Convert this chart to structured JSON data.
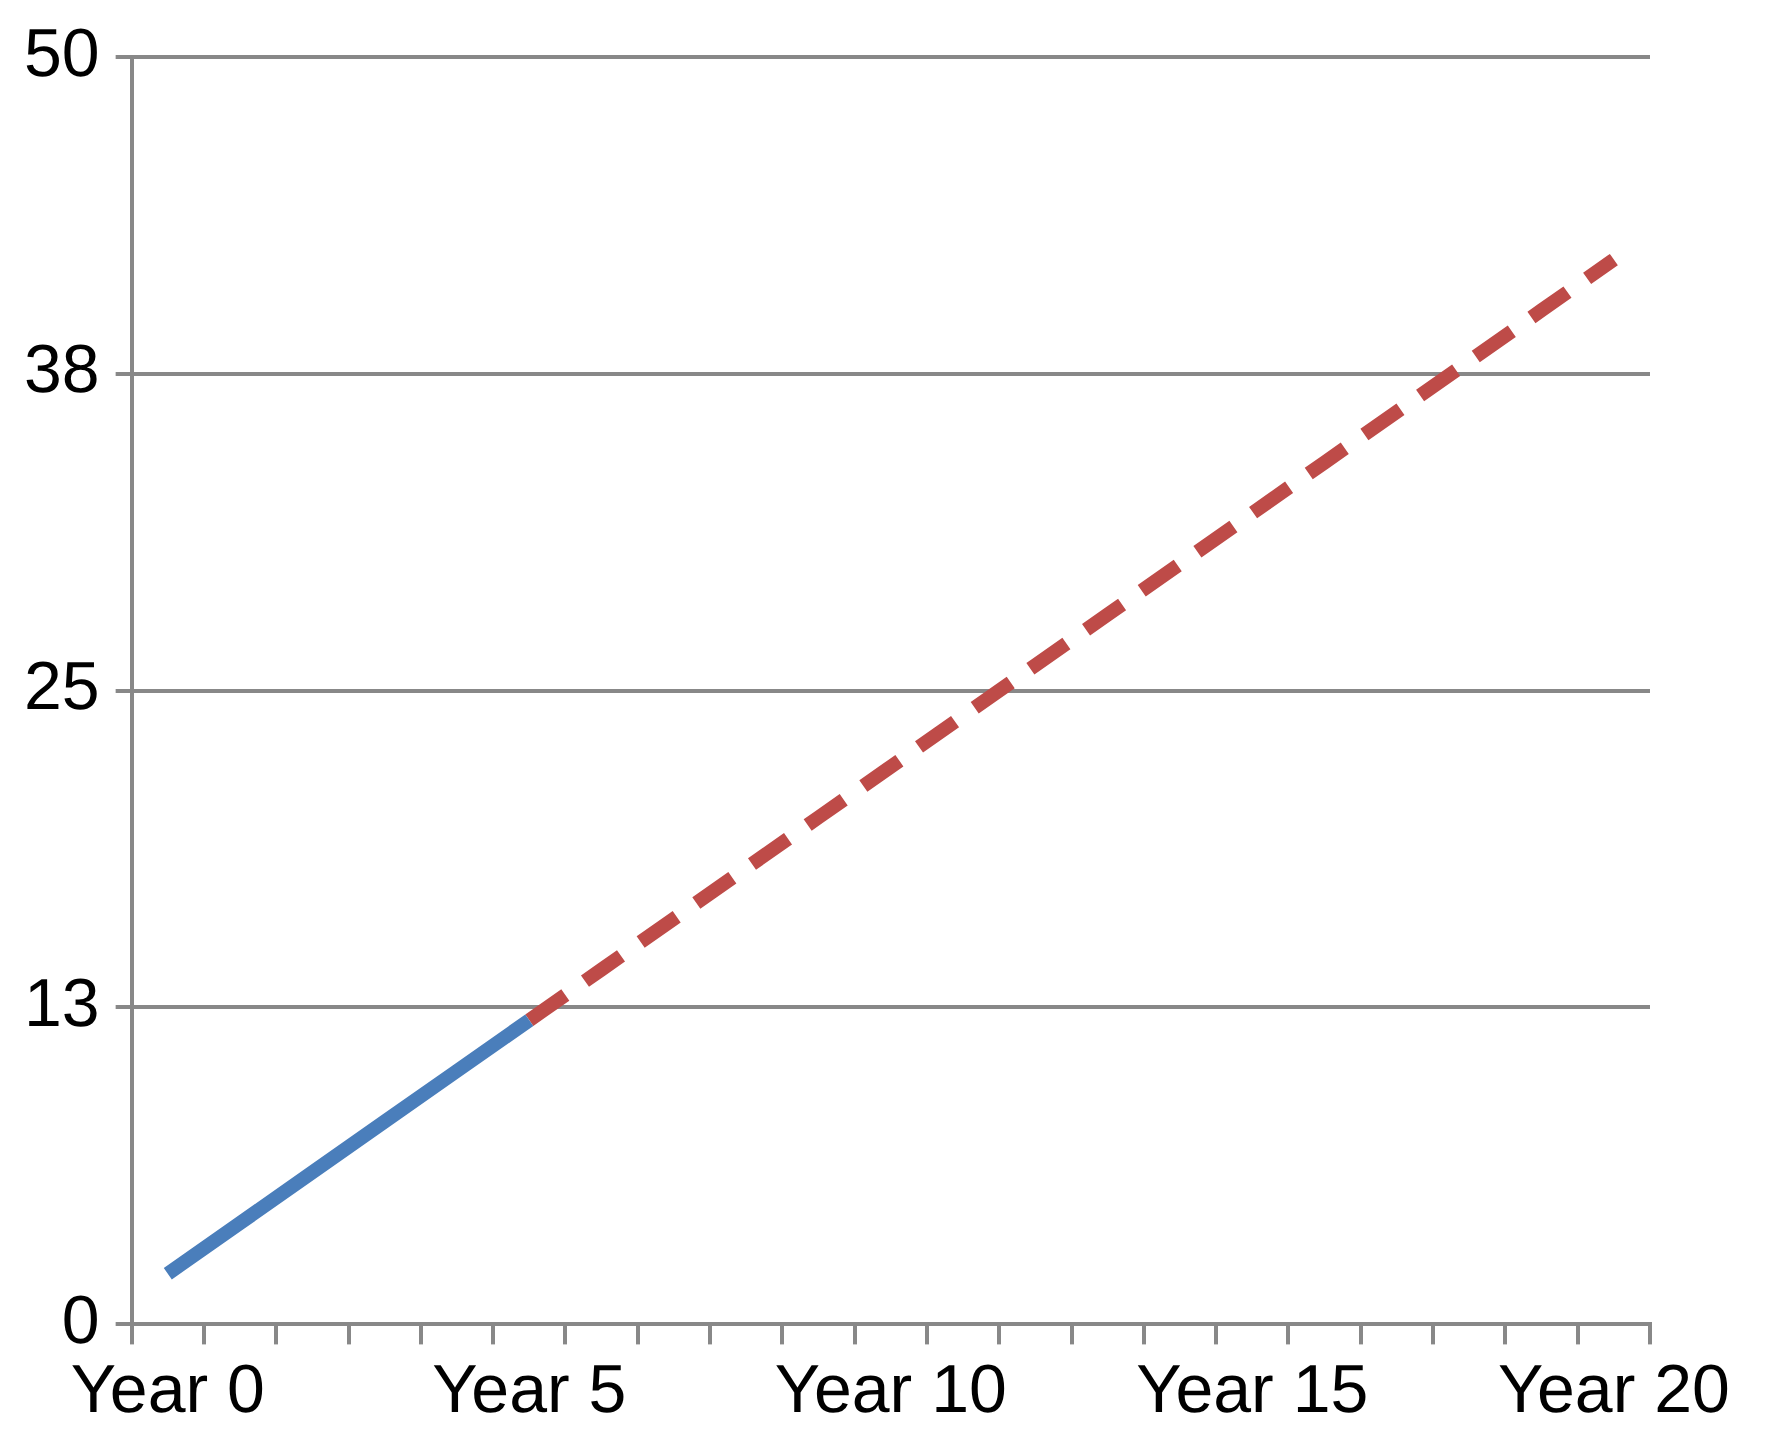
{
  "chart_data": {
    "type": "line",
    "categories": [
      "Year 0",
      null,
      null,
      null,
      null,
      "Year 5",
      null,
      null,
      null,
      null,
      "Year 10",
      null,
      null,
      null,
      null,
      "Year 15",
      null,
      null,
      null,
      null,
      "Year 20"
    ],
    "series": [
      {
        "color": "#4a7ebb",
        "line_style": "solid",
        "values": [
          2,
          4,
          6,
          8,
          10,
          12,
          null,
          null,
          null,
          null,
          null,
          null,
          null,
          null,
          null,
          null,
          null,
          null,
          null,
          null,
          null
        ]
      },
      {
        "color": "#be4b48",
        "line_style": "dashed",
        "values": [
          null,
          null,
          null,
          null,
          null,
          12,
          14,
          16,
          18,
          20,
          22,
          24,
          26,
          28,
          30,
          32,
          34,
          36,
          38,
          40,
          42
        ]
      }
    ],
    "ylim": [
      0,
      50
    ],
    "yticks": [
      0,
      {
        "value": 12.5,
        "label": "13"
      },
      25,
      {
        "value": 37.5,
        "label": "38"
      },
      50
    ],
    "grid": "y",
    "marker": "none"
  }
}
